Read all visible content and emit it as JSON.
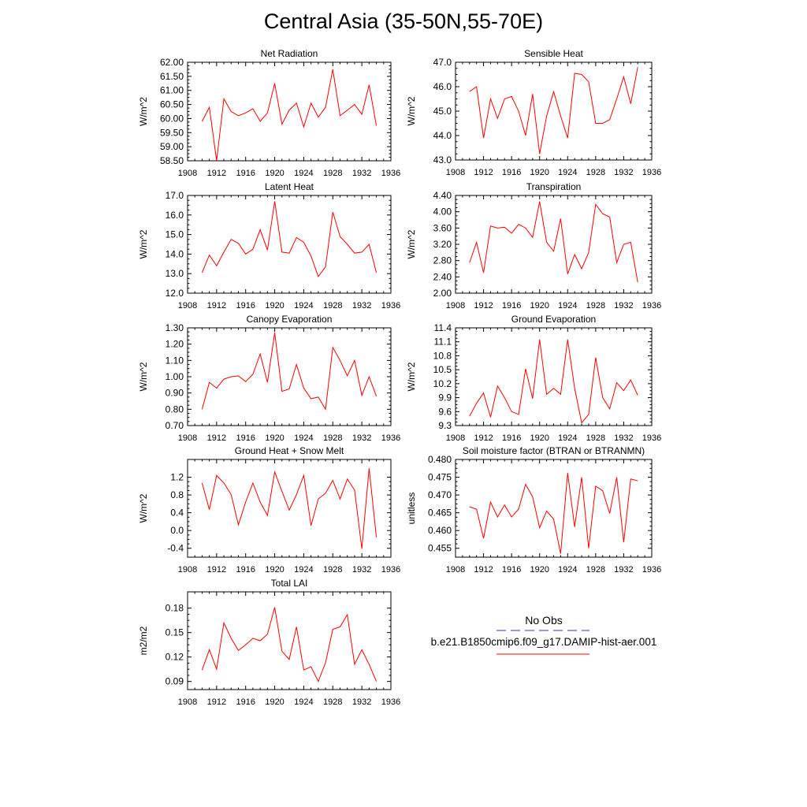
{
  "page": {
    "title": "Central Asia (35-50N,55-70E)"
  },
  "legend": {
    "obs_label": "No Obs",
    "obs_color": "#3333aa",
    "model_label": "b.e21.B1850cmip6.f09_g17.DAMIP-hist-aer.001",
    "model_color": "#ff0000"
  },
  "chart_data": [
    {
      "type": "line",
      "title": "Net Radiation",
      "ylabel": "W/m^2",
      "xlim": [
        1908,
        1936
      ],
      "xticks": [
        1908,
        1912,
        1916,
        1920,
        1924,
        1928,
        1932,
        1936
      ],
      "ylim": [
        58.5,
        62.0
      ],
      "yticks": [
        "58.50",
        "59.00",
        "59.50",
        "60.00",
        "60.50",
        "61.00",
        "61.50",
        "62.00"
      ],
      "x": [
        1910,
        1911,
        1912,
        1913,
        1914,
        1915,
        1916,
        1917,
        1918,
        1919,
        1920,
        1921,
        1922,
        1923,
        1924,
        1925,
        1926,
        1927,
        1928,
        1929,
        1930,
        1931,
        1932,
        1933,
        1934
      ],
      "series": [
        {
          "color": "#ff0000",
          "values": [
            59.9,
            60.4,
            58.5,
            60.7,
            60.25,
            60.1,
            60.2,
            60.35,
            59.9,
            60.2,
            61.25,
            59.8,
            60.3,
            60.55,
            59.7,
            60.55,
            60.05,
            60.4,
            61.75,
            60.1,
            60.3,
            60.5,
            60.15,
            61.2,
            59.75
          ]
        }
      ]
    },
    {
      "type": "line",
      "title": "Sensible Heat",
      "ylabel": "W/m^2",
      "xlim": [
        1908,
        1936
      ],
      "xticks": [
        1908,
        1912,
        1916,
        1920,
        1924,
        1928,
        1932,
        1936
      ],
      "ylim": [
        43.0,
        47.0
      ],
      "yticks": [
        "43.0",
        "44.0",
        "45.0",
        "46.0",
        "47.0"
      ],
      "x": [
        1910,
        1911,
        1912,
        1913,
        1914,
        1915,
        1916,
        1917,
        1918,
        1919,
        1920,
        1921,
        1922,
        1923,
        1924,
        1925,
        1926,
        1927,
        1928,
        1929,
        1930,
        1931,
        1932,
        1933,
        1934
      ],
      "series": [
        {
          "color": "#ff0000",
          "values": [
            45.8,
            46.0,
            43.9,
            45.5,
            44.7,
            45.5,
            45.6,
            45.0,
            44.0,
            45.7,
            43.25,
            44.8,
            45.8,
            44.8,
            43.9,
            46.55,
            46.5,
            46.2,
            44.5,
            44.5,
            44.65,
            45.5,
            46.4,
            45.3,
            46.8
          ]
        }
      ]
    },
    {
      "type": "line",
      "title": "Latent Heat",
      "ylabel": "W/m^2",
      "xlim": [
        1908,
        1936
      ],
      "xticks": [
        1908,
        1912,
        1916,
        1920,
        1924,
        1928,
        1932,
        1936
      ],
      "ylim": [
        12.0,
        17.0
      ],
      "yticks": [
        "12.0",
        "13.0",
        "14.0",
        "15.0",
        "16.0",
        "17.0"
      ],
      "x": [
        1910,
        1911,
        1912,
        1913,
        1914,
        1915,
        1916,
        1917,
        1918,
        1919,
        1920,
        1921,
        1922,
        1923,
        1924,
        1925,
        1926,
        1927,
        1928,
        1929,
        1930,
        1931,
        1932,
        1933,
        1934
      ],
      "series": [
        {
          "color": "#ff0000",
          "values": [
            13.05,
            13.95,
            13.4,
            14.1,
            14.75,
            14.55,
            14.0,
            14.25,
            15.25,
            14.2,
            16.7,
            14.1,
            14.05,
            14.85,
            14.6,
            13.9,
            12.85,
            13.35,
            16.15,
            14.9,
            14.5,
            14.05,
            14.1,
            14.5,
            13.05
          ]
        }
      ]
    },
    {
      "type": "line",
      "title": "Transpiration",
      "ylabel": "W/m^2",
      "xlim": [
        1908,
        1936
      ],
      "xticks": [
        1908,
        1912,
        1916,
        1920,
        1924,
        1928,
        1932,
        1936
      ],
      "ylim": [
        2.0,
        4.4
      ],
      "yticks": [
        "2.00",
        "2.40",
        "2.80",
        "3.20",
        "3.60",
        "4.00",
        "4.40"
      ],
      "x": [
        1910,
        1911,
        1912,
        1913,
        1914,
        1915,
        1916,
        1917,
        1918,
        1919,
        1920,
        1921,
        1922,
        1923,
        1924,
        1925,
        1926,
        1927,
        1928,
        1929,
        1930,
        1931,
        1932,
        1933,
        1934
      ],
      "series": [
        {
          "color": "#ff0000",
          "values": [
            2.75,
            3.25,
            2.5,
            3.65,
            3.6,
            3.62,
            3.47,
            3.69,
            3.6,
            3.37,
            4.25,
            3.25,
            3.03,
            3.83,
            2.47,
            2.95,
            2.6,
            3.0,
            4.18,
            3.95,
            3.87,
            2.75,
            3.2,
            3.25,
            2.27
          ]
        }
      ]
    },
    {
      "type": "line",
      "title": "Canopy Evaporation",
      "ylabel": "W/m^2",
      "xlim": [
        1908,
        1936
      ],
      "xticks": [
        1908,
        1912,
        1916,
        1920,
        1924,
        1928,
        1932,
        1936
      ],
      "ylim": [
        0.7,
        1.3
      ],
      "yticks": [
        "0.70",
        "0.80",
        "0.90",
        "1.00",
        "1.10",
        "1.20",
        "1.30"
      ],
      "x": [
        1910,
        1911,
        1912,
        1913,
        1914,
        1915,
        1916,
        1917,
        1918,
        1919,
        1920,
        1921,
        1922,
        1923,
        1924,
        1925,
        1926,
        1927,
        1928,
        1929,
        1930,
        1931,
        1932,
        1933,
        1934
      ],
      "series": [
        {
          "color": "#ff0000",
          "values": [
            0.8,
            0.965,
            0.93,
            0.985,
            1.0,
            1.005,
            0.97,
            1.015,
            1.14,
            0.965,
            1.27,
            0.91,
            0.925,
            1.075,
            0.93,
            0.865,
            0.875,
            0.8,
            1.18,
            1.1,
            1.005,
            1.1,
            0.885,
            1.0,
            0.88
          ]
        }
      ]
    },
    {
      "type": "line",
      "title": "Ground Evaporation",
      "ylabel": "W/m^2",
      "xlim": [
        1908,
        1936
      ],
      "xticks": [
        1908,
        1912,
        1916,
        1920,
        1924,
        1928,
        1932,
        1936
      ],
      "ylim": [
        9.3,
        11.4
      ],
      "yticks": [
        "9.3",
        "9.6",
        "9.9",
        "10.2",
        "10.5",
        "10.8",
        "11.1",
        "11.4"
      ],
      "x": [
        1910,
        1911,
        1912,
        1913,
        1914,
        1915,
        1916,
        1917,
        1918,
        1919,
        1920,
        1921,
        1922,
        1923,
        1924,
        1925,
        1926,
        1927,
        1928,
        1929,
        1930,
        1931,
        1932,
        1933,
        1934
      ],
      "series": [
        {
          "color": "#ff0000",
          "values": [
            9.5,
            9.78,
            10.0,
            9.48,
            10.15,
            9.9,
            9.6,
            9.54,
            10.52,
            9.88,
            11.15,
            9.97,
            10.1,
            9.97,
            11.15,
            10.1,
            9.36,
            9.54,
            10.76,
            9.9,
            9.66,
            10.22,
            10.05,
            10.28,
            9.95
          ]
        }
      ]
    },
    {
      "type": "line",
      "title": "Ground Heat + Snow Melt",
      "ylabel": "W/m^2",
      "xlim": [
        1908,
        1936
      ],
      "xticks": [
        1908,
        1912,
        1916,
        1920,
        1924,
        1928,
        1932,
        1936
      ],
      "ylim": [
        -0.6,
        1.6
      ],
      "yticks": [
        "-0.4",
        "0.0",
        "0.4",
        "0.8",
        "1.2"
      ],
      "ytick_values": [
        -0.4,
        0.0,
        0.4,
        0.8,
        1.2
      ],
      "x": [
        1910,
        1911,
        1912,
        1913,
        1914,
        1915,
        1916,
        1917,
        1918,
        1919,
        1920,
        1921,
        1922,
        1923,
        1924,
        1925,
        1926,
        1927,
        1928,
        1929,
        1930,
        1931,
        1932,
        1933,
        1934
      ],
      "series": [
        {
          "color": "#ff0000",
          "values": [
            1.07,
            0.47,
            1.24,
            1.07,
            0.81,
            0.13,
            0.64,
            1.07,
            0.64,
            0.34,
            1.32,
            0.88,
            0.46,
            0.81,
            1.24,
            0.11,
            0.71,
            0.84,
            1.13,
            0.71,
            1.16,
            0.91,
            -0.41,
            1.4,
            -0.15
          ]
        }
      ]
    },
    {
      "type": "line",
      "title": "Soil moisture factor (BTRAN or BTRANMN)",
      "ylabel": "unitless",
      "xlim": [
        1908,
        1936
      ],
      "xticks": [
        1908,
        1912,
        1916,
        1920,
        1924,
        1928,
        1932,
        1936
      ],
      "ylim": [
        0.4525,
        0.48
      ],
      "yticks": [
        "0.455",
        "0.460",
        "0.465",
        "0.470",
        "0.475",
        "0.480"
      ],
      "ytick_values": [
        0.455,
        0.46,
        0.465,
        0.47,
        0.475,
        0.48
      ],
      "x": [
        1910,
        1911,
        1912,
        1913,
        1914,
        1915,
        1916,
        1917,
        1918,
        1919,
        1920,
        1921,
        1922,
        1923,
        1924,
        1925,
        1926,
        1927,
        1928,
        1929,
        1930,
        1931,
        1932,
        1933,
        1934
      ],
      "series": [
        {
          "color": "#ff0000",
          "values": [
            0.4667,
            0.466,
            0.4578,
            0.468,
            0.4638,
            0.4672,
            0.4638,
            0.466,
            0.473,
            0.4695,
            0.4608,
            0.4655,
            0.4632,
            0.4535,
            0.4762,
            0.461,
            0.475,
            0.455,
            0.4725,
            0.4712,
            0.4648,
            0.475,
            0.4567,
            0.4745,
            0.474
          ]
        }
      ]
    },
    {
      "type": "line",
      "title": "Total LAI",
      "ylabel": "m2/m2",
      "xlim": [
        1908,
        1936
      ],
      "xticks": [
        1908,
        1912,
        1916,
        1920,
        1924,
        1928,
        1932,
        1936
      ],
      "ylim": [
        0.08,
        0.2
      ],
      "yticks": [
        "0.09",
        "0.12",
        "0.15",
        "0.18"
      ],
      "ytick_values": [
        0.09,
        0.12,
        0.15,
        0.18
      ],
      "x": [
        1910,
        1911,
        1912,
        1913,
        1914,
        1915,
        1916,
        1917,
        1918,
        1919,
        1920,
        1921,
        1922,
        1923,
        1924,
        1925,
        1926,
        1927,
        1928,
        1929,
        1930,
        1931,
        1932,
        1933,
        1934
      ],
      "series": [
        {
          "color": "#ff0000",
          "values": [
            0.104,
            0.129,
            0.105,
            0.162,
            0.143,
            0.128,
            0.135,
            0.143,
            0.14,
            0.148,
            0.181,
            0.127,
            0.117,
            0.157,
            0.104,
            0.108,
            0.09,
            0.113,
            0.154,
            0.157,
            0.172,
            0.111,
            0.129,
            0.111,
            0.09
          ]
        }
      ]
    }
  ]
}
